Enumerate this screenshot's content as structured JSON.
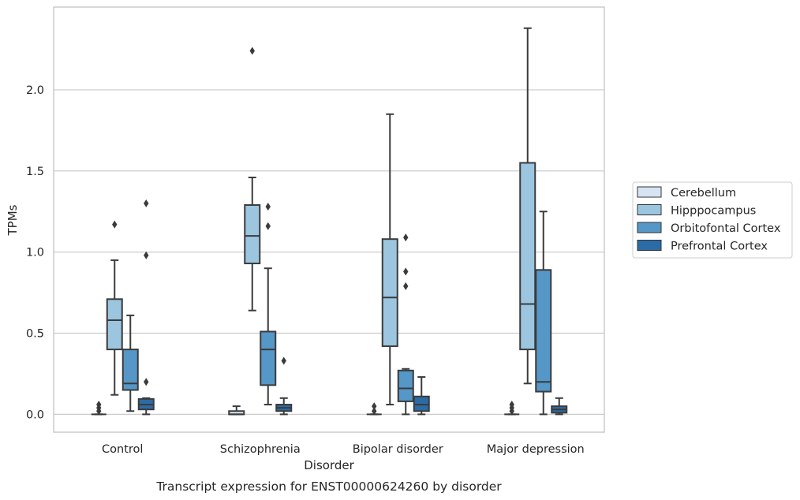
{
  "chart_data": {
    "type": "box",
    "caption": "Transcript expression for ENST00000624260 by disorder",
    "xlabel": "Disorder",
    "ylabel": "TPMs",
    "ylim": [
      -0.11,
      2.51
    ],
    "yticks": [
      0.0,
      0.5,
      1.0,
      1.5,
      2.0
    ],
    "ytick_labels": [
      "0.0",
      "0.5",
      "1.0",
      "1.5",
      "2.0"
    ],
    "grid": "horizontal",
    "legend_position": "outside-right",
    "categories": [
      "Control",
      "Schizophrenia",
      "Bipolar disorder",
      "Major depression"
    ],
    "series": [
      {
        "name": "Cerebellum",
        "color": "#d6e4f2",
        "boxes": [
          {
            "q1": 0.0,
            "median": 0.0,
            "q3": 0.0,
            "whislo": 0.0,
            "whishi": 0.0,
            "fliers": [
              0.02,
              0.04,
              0.06
            ]
          },
          {
            "q1": 0.0,
            "median": 0.0,
            "q3": 0.02,
            "whislo": 0.0,
            "whishi": 0.05,
            "fliers": []
          },
          {
            "q1": 0.0,
            "median": 0.0,
            "q3": 0.0,
            "whislo": 0.0,
            "whishi": 0.0,
            "fliers": [
              0.02,
              0.05
            ]
          },
          {
            "q1": 0.0,
            "median": 0.0,
            "q3": 0.0,
            "whislo": 0.0,
            "whishi": 0.0,
            "fliers": [
              0.02,
              0.04,
              0.06
            ]
          }
        ]
      },
      {
        "name": "Hipppocampus",
        "color": "#9cc5df",
        "boxes": [
          {
            "q1": 0.4,
            "median": 0.58,
            "q3": 0.71,
            "whislo": 0.12,
            "whishi": 0.95,
            "fliers": [
              1.17
            ]
          },
          {
            "q1": 0.93,
            "median": 1.1,
            "q3": 1.29,
            "whislo": 0.64,
            "whishi": 1.46,
            "fliers": [
              2.24
            ]
          },
          {
            "q1": 0.42,
            "median": 0.72,
            "q3": 1.08,
            "whislo": 0.06,
            "whishi": 1.85,
            "fliers": []
          },
          {
            "q1": 0.4,
            "median": 0.68,
            "q3": 1.55,
            "whislo": 0.19,
            "whishi": 2.38,
            "fliers": []
          }
        ]
      },
      {
        "name": "Orbitofontal Cortex",
        "color": "#5597c6",
        "boxes": [
          {
            "q1": 0.15,
            "median": 0.19,
            "q3": 0.4,
            "whislo": 0.02,
            "whishi": 0.61,
            "fliers": []
          },
          {
            "q1": 0.18,
            "median": 0.4,
            "q3": 0.51,
            "whislo": 0.06,
            "whishi": 0.9,
            "fliers": [
              1.16,
              1.28
            ]
          },
          {
            "q1": 0.08,
            "median": 0.16,
            "q3": 0.27,
            "whislo": 0.0,
            "whishi": 0.28,
            "fliers": [
              0.79,
              0.88,
              1.09
            ]
          },
          {
            "q1": 0.14,
            "median": 0.2,
            "q3": 0.89,
            "whislo": 0.0,
            "whishi": 1.25,
            "fliers": []
          }
        ]
      },
      {
        "name": "Prefrontal Cortex",
        "color": "#2c6ba5",
        "boxes": [
          {
            "q1": 0.03,
            "median": 0.06,
            "q3": 0.095,
            "whislo": 0.0,
            "whishi": 0.1,
            "fliers": [
              0.2,
              0.98,
              1.3
            ]
          },
          {
            "q1": 0.02,
            "median": 0.04,
            "q3": 0.06,
            "whislo": 0.0,
            "whishi": 0.1,
            "fliers": [
              0.33
            ]
          },
          {
            "q1": 0.02,
            "median": 0.06,
            "q3": 0.11,
            "whislo": 0.0,
            "whishi": 0.23,
            "fliers": []
          },
          {
            "q1": 0.01,
            "median": 0.03,
            "q3": 0.05,
            "whislo": 0.0,
            "whishi": 0.1,
            "fliers": []
          }
        ]
      }
    ]
  },
  "colors": {
    "frame": "#cccccc",
    "grid": "#cccccc",
    "line": "#3b3b3b",
    "text": "#262626"
  }
}
